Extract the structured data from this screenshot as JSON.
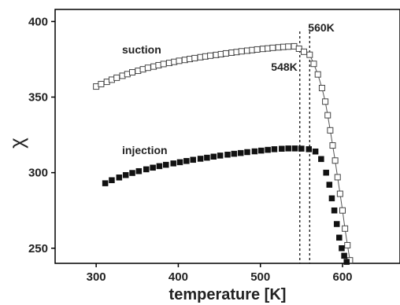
{
  "chart_data": {
    "type": "scatter",
    "title": "",
    "xlabel": "temperature [K]",
    "ylabel": "χ",
    "xlim": [
      250,
      670
    ],
    "ylim": [
      240,
      408
    ],
    "xticks": [
      300,
      400,
      500,
      600
    ],
    "yticks": [
      250,
      300,
      350,
      400
    ],
    "grid": false,
    "series": [
      {
        "name": "suction",
        "marker": "open-square",
        "color": "#444444",
        "line": true,
        "x": [
          300,
          306,
          313,
          319,
          325,
          332,
          338,
          344,
          351,
          357,
          363,
          370,
          376,
          382,
          389,
          395,
          401,
          408,
          414,
          420,
          427,
          433,
          439,
          446,
          452,
          458,
          465,
          471,
          477,
          484,
          490,
          496,
          503,
          509,
          515,
          522,
          528,
          534,
          541,
          547,
          553,
          560,
          565,
          570,
          575,
          579,
          582,
          585,
          588,
          591,
          594,
          597,
          600,
          603,
          606,
          609
        ],
        "y": [
          357.0,
          358.6,
          360.1,
          361.5,
          362.8,
          364.1,
          365.2,
          366.4,
          367.4,
          368.4,
          369.4,
          370.2,
          371.1,
          371.9,
          372.6,
          373.3,
          374.0,
          374.6,
          375.2,
          375.8,
          376.4,
          376.9,
          377.4,
          377.9,
          378.4,
          378.9,
          379.4,
          379.8,
          380.3,
          380.7,
          381.1,
          381.5,
          381.9,
          382.2,
          382.6,
          382.9,
          383.2,
          383.4,
          383.6,
          382.0,
          380.0,
          378.0,
          372.0,
          365.0,
          356.0,
          347.0,
          338.0,
          328.0,
          318.0,
          308.0,
          297.0,
          286.0,
          275.0,
          263.0,
          252.0,
          242.0
        ]
      },
      {
        "name": "injection",
        "marker": "filled-square",
        "color": "#111111",
        "line": false,
        "x": [
          311,
          319,
          328,
          336,
          344,
          352,
          361,
          369,
          377,
          385,
          394,
          402,
          410,
          418,
          427,
          435,
          443,
          451,
          460,
          468,
          476,
          484,
          493,
          501,
          509,
          517,
          526,
          534,
          542,
          550,
          559,
          567,
          574,
          580,
          584,
          587,
          590,
          593,
          596,
          599,
          602,
          605
        ],
        "y": [
          293.0,
          295.0,
          296.8,
          298.4,
          299.8,
          301.0,
          302.2,
          303.3,
          304.3,
          305.2,
          306.1,
          306.9,
          307.7,
          308.5,
          309.2,
          309.9,
          310.6,
          311.3,
          311.9,
          312.5,
          313.0,
          313.6,
          314.1,
          314.6,
          315.1,
          315.5,
          315.8,
          316.0,
          316.0,
          315.9,
          315.5,
          314.0,
          309.0,
          300.0,
          292.0,
          283.0,
          275.0,
          266.0,
          257.0,
          250.0,
          245.0,
          241.0
        ]
      }
    ],
    "reference_lines": [
      {
        "axis": "x",
        "value": 548,
        "label": "548K",
        "style": "dashed"
      },
      {
        "axis": "x",
        "value": 560,
        "label": "560K",
        "style": "dashed"
      }
    ],
    "annotations": [
      {
        "text": "suction",
        "target_series": "suction"
      },
      {
        "text": "injection",
        "target_series": "injection"
      }
    ]
  }
}
